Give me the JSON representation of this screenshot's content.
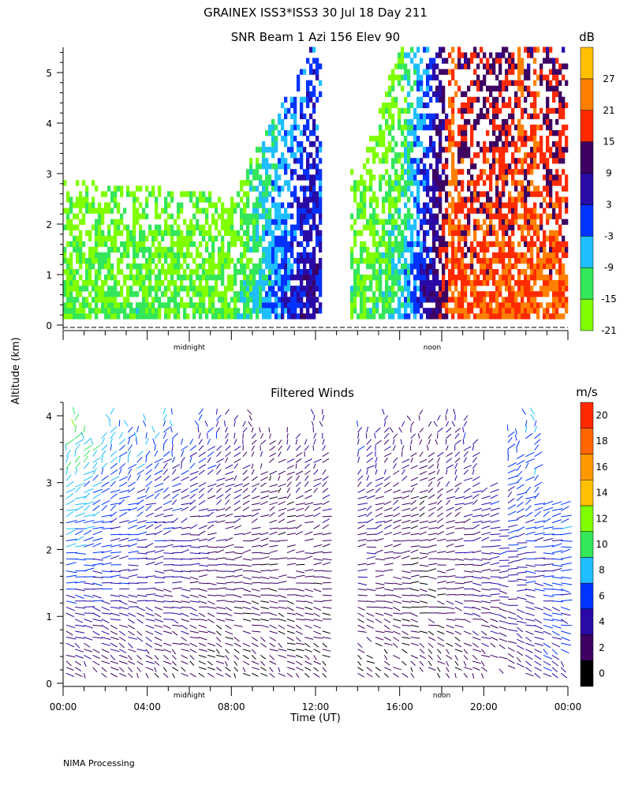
{
  "header": {
    "title": "GRAINEX ISS3*ISS3  30 Jul 18 Day 211"
  },
  "footer": {
    "note": "NIMA Processing"
  },
  "colors": {
    "snr_bands": [
      "#7fff00",
      "#33e65a",
      "#1fbfff",
      "#0033ff",
      "#2a0aa6",
      "#3d0060",
      "#ff2a00",
      "#ff7f00",
      "#ffc000"
    ],
    "wind_bands": [
      "#000000",
      "#3d0060",
      "#2a0aa6",
      "#0033ff",
      "#1fbfff",
      "#33e65a",
      "#7fff00",
      "#ffc000",
      "#ff9900",
      "#ff6600",
      "#ff2a00"
    ]
  },
  "chart_data": [
    {
      "type": "heatmap",
      "title": "SNR Beam 1 Azi 156 Elev 90",
      "ylabel": "Altitude (km)",
      "ylim": [
        0,
        5.5
      ],
      "yticks": [
        "0",
        "1",
        "2",
        "3",
        "4",
        "5"
      ],
      "x_markers": [
        "midnight",
        "noon"
      ],
      "colorbar": {
        "unit": "dB",
        "range": [
          -21,
          33
        ],
        "ticks": [
          "-21",
          "-15",
          "-9",
          "-3",
          "3",
          "9",
          "15",
          "21",
          "27"
        ]
      },
      "description_points": [
        {
          "time_h": 0,
          "top_km": 2.8,
          "mean_db": -15
        },
        {
          "time_h": 4,
          "top_km": 2.7,
          "mean_db": -13
        },
        {
          "time_h": 8,
          "top_km": 2.5,
          "mean_db": -15
        },
        {
          "time_h": 11.9,
          "top_km": 5.5,
          "mean_db": 9
        },
        {
          "time_h": 14,
          "top_km": 2.8,
          "mean_db": -15
        },
        {
          "time_h": 16,
          "top_km": 5.5,
          "mean_db": -9
        },
        {
          "time_h": 18.5,
          "top_km": 5.5,
          "mean_db": 21
        },
        {
          "time_h": 21.9,
          "top_km": 5.5,
          "mean_db": 21
        }
      ]
    },
    {
      "type": "scatter",
      "title": "Filtered Winds",
      "xlabel": "Time (UT)",
      "ylabel": "Altitude (km)",
      "xlim": [
        0,
        24
      ],
      "ylim": [
        0,
        4.2
      ],
      "xticks": [
        "00:00",
        "04:00",
        "08:00",
        "12:00",
        "16:00",
        "20:00",
        "00:00"
      ],
      "yticks": [
        "0",
        "1",
        "2",
        "3",
        "4"
      ],
      "x_markers": [
        "midnight",
        "noon"
      ],
      "colorbar": {
        "unit": "m/s",
        "range": [
          0,
          22
        ],
        "ticks": [
          "0",
          "2",
          "4",
          "6",
          "8",
          "10",
          "12",
          "14",
          "16",
          "18",
          "20"
        ]
      },
      "speed_profile": [
        {
          "time_h": 0.5,
          "low_ms": 3,
          "high_ms": 12
        },
        {
          "time_h": 3,
          "low_ms": 3,
          "high_ms": 9
        },
        {
          "time_h": 6,
          "low_ms": 2,
          "high_ms": 7
        },
        {
          "time_h": 10,
          "low_ms": 2,
          "high_ms": 3
        },
        {
          "time_h": 14,
          "low_ms": 2,
          "high_ms": 6
        },
        {
          "time_h": 17,
          "low_ms": 2,
          "high_ms": 3
        },
        {
          "time_h": 21,
          "low_ms": 3,
          "high_ms": 8
        },
        {
          "time_h": 23.5,
          "low_ms": 6,
          "high_ms": 8
        }
      ]
    }
  ]
}
